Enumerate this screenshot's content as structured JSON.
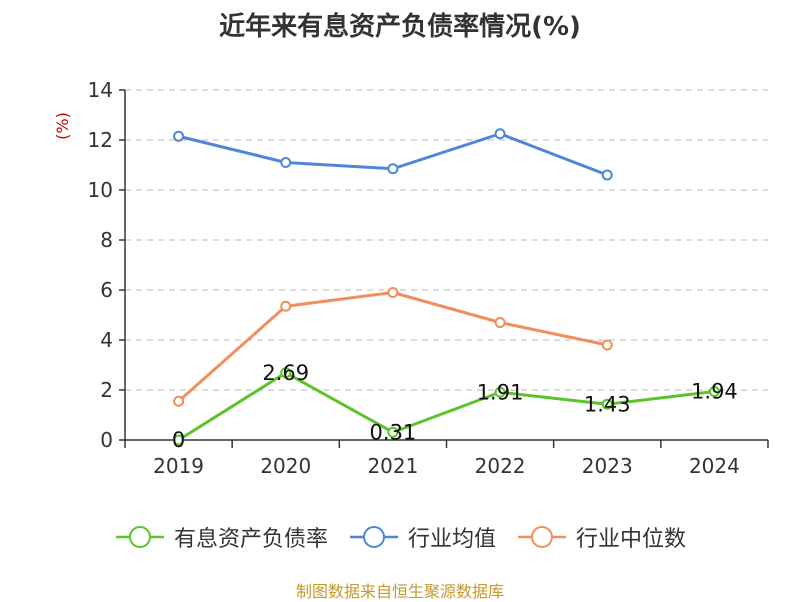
{
  "chart_data": {
    "type": "line",
    "title": "近年来有息资产负债率情况(%)",
    "ylabel": "(%)",
    "xlabel": "",
    "x": [
      "2019",
      "2020",
      "2021",
      "2022",
      "2023",
      "2024"
    ],
    "ylim": [
      0,
      14
    ],
    "yticks": [
      0,
      2,
      4,
      6,
      8,
      10,
      12,
      14
    ],
    "grid": true,
    "legend_position": "bottom",
    "series": [
      {
        "name": "有息资产负债率",
        "color": "#5cc42a",
        "labeled": true,
        "values": [
          0,
          2.69,
          0.31,
          1.91,
          1.43,
          1.94
        ],
        "labels": [
          "0",
          "2.69",
          "0.31",
          "1.91",
          "1.43",
          "1.94"
        ]
      },
      {
        "name": "行业均值",
        "color": "#4f86d8",
        "labeled": false,
        "values": [
          12.15,
          11.1,
          10.85,
          12.25,
          10.6,
          null
        ]
      },
      {
        "name": "行业中位数",
        "color": "#f28e5d",
        "labeled": false,
        "values": [
          1.55,
          5.35,
          5.9,
          4.7,
          3.8,
          null
        ]
      }
    ]
  },
  "footer": {
    "source": "制图数据来自恒生聚源数据库"
  },
  "colors": {
    "ylabel": "#cc0000",
    "grid": "#c8c8c8",
    "axis": "#333333"
  }
}
